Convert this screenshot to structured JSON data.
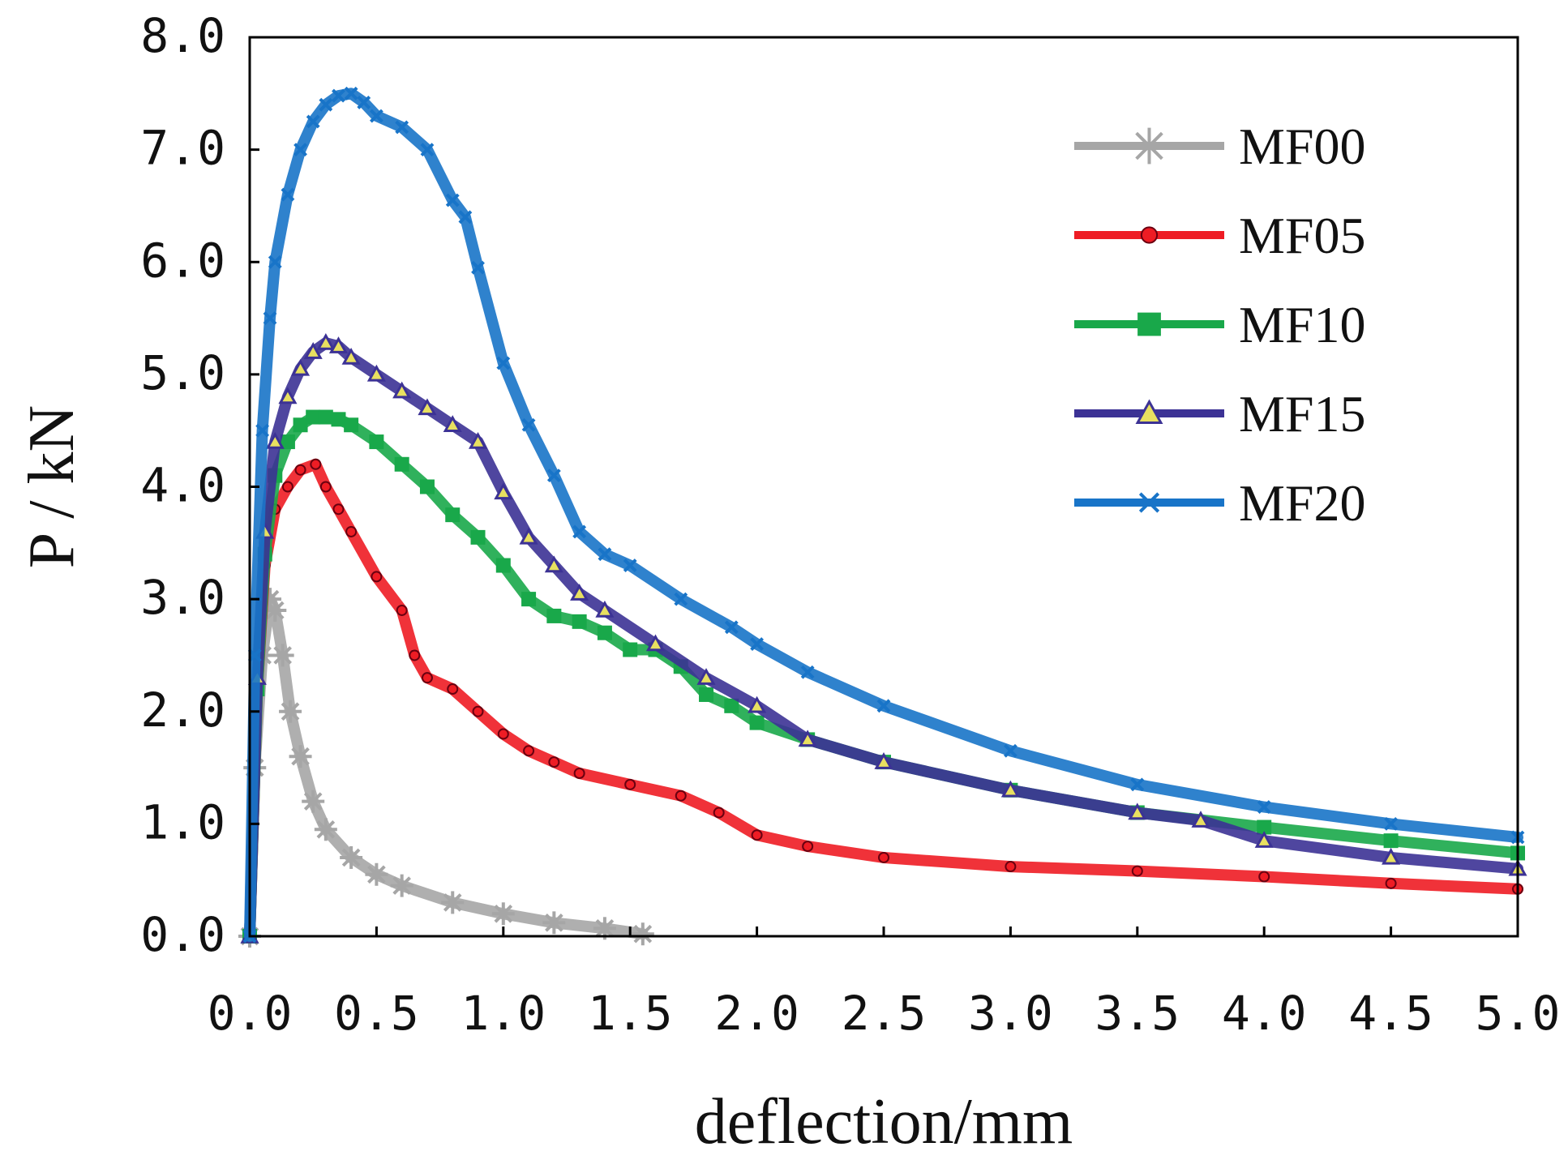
{
  "chart_data": {
    "type": "line",
    "title": "",
    "xlabel": "deflection/mm",
    "ylabel": "P / kN",
    "xlim": [
      0,
      5
    ],
    "ylim": [
      0,
      8
    ],
    "x_ticks": [
      "0.0",
      "0.5",
      "1.0",
      "1.5",
      "2.0",
      "2.5",
      "3.0",
      "3.5",
      "4.0",
      "4.5",
      "5.0"
    ],
    "y_ticks": [
      "0.0",
      "1.0",
      "2.0",
      "3.0",
      "4.0",
      "5.0",
      "6.0",
      "7.0",
      "8.0"
    ],
    "legend_position": "top-right",
    "series": [
      {
        "name": "MF00",
        "color": "#a6a6a6",
        "marker": "asterisk",
        "x": [
          0.0,
          0.02,
          0.05,
          0.08,
          0.1,
          0.13,
          0.16,
          0.2,
          0.25,
          0.3,
          0.4,
          0.5,
          0.6,
          0.8,
          1.0,
          1.2,
          1.4,
          1.55
        ],
        "y": [
          0.0,
          1.5,
          2.5,
          3.0,
          2.9,
          2.5,
          2.0,
          1.6,
          1.2,
          0.95,
          0.7,
          0.55,
          0.45,
          0.3,
          0.2,
          0.12,
          0.07,
          0.02
        ]
      },
      {
        "name": "MF05",
        "color": "#ee1c24",
        "marker": "dot",
        "x": [
          0.0,
          0.03,
          0.06,
          0.1,
          0.15,
          0.2,
          0.26,
          0.3,
          0.35,
          0.4,
          0.5,
          0.6,
          0.65,
          0.7,
          0.8,
          0.9,
          1.0,
          1.1,
          1.2,
          1.3,
          1.5,
          1.7,
          1.85,
          2.0,
          2.2,
          2.5,
          3.0,
          3.5,
          4.0,
          4.5,
          5.0
        ],
        "y": [
          0.0,
          2.2,
          3.3,
          3.8,
          4.0,
          4.15,
          4.2,
          4.0,
          3.8,
          3.6,
          3.2,
          2.9,
          2.5,
          2.3,
          2.2,
          2.0,
          1.8,
          1.65,
          1.55,
          1.45,
          1.35,
          1.25,
          1.1,
          0.9,
          0.8,
          0.7,
          0.62,
          0.58,
          0.53,
          0.47,
          0.42
        ]
      },
      {
        "name": "MF10",
        "color": "#19a84a",
        "marker": "square",
        "x": [
          0.0,
          0.03,
          0.06,
          0.1,
          0.15,
          0.2,
          0.25,
          0.3,
          0.35,
          0.4,
          0.5,
          0.6,
          0.7,
          0.8,
          0.9,
          1.0,
          1.1,
          1.2,
          1.3,
          1.4,
          1.5,
          1.6,
          1.7,
          1.8,
          1.9,
          2.0,
          2.2,
          2.5,
          3.0,
          3.5,
          4.0,
          4.5,
          5.0
        ],
        "y": [
          0.0,
          2.2,
          3.4,
          4.1,
          4.4,
          4.55,
          4.62,
          4.62,
          4.6,
          4.55,
          4.4,
          4.2,
          4.0,
          3.75,
          3.55,
          3.3,
          3.0,
          2.85,
          2.8,
          2.7,
          2.55,
          2.55,
          2.4,
          2.15,
          2.05,
          1.9,
          1.75,
          1.55,
          1.3,
          1.1,
          0.97,
          0.85,
          0.74
        ]
      },
      {
        "name": "MF15",
        "color": "#3c3295",
        "marker": "triangle",
        "x": [
          0.0,
          0.03,
          0.06,
          0.1,
          0.15,
          0.2,
          0.25,
          0.3,
          0.35,
          0.4,
          0.5,
          0.6,
          0.7,
          0.8,
          0.9,
          1.0,
          1.1,
          1.2,
          1.3,
          1.4,
          1.6,
          1.8,
          2.0,
          2.2,
          2.5,
          3.0,
          3.5,
          3.75,
          4.0,
          4.5,
          5.0
        ],
        "y": [
          0.0,
          2.3,
          3.6,
          4.4,
          4.8,
          5.05,
          5.2,
          5.28,
          5.25,
          5.15,
          5.0,
          4.85,
          4.7,
          4.55,
          4.4,
          3.95,
          3.55,
          3.3,
          3.05,
          2.9,
          2.6,
          2.3,
          2.05,
          1.75,
          1.55,
          1.3,
          1.1,
          1.03,
          0.85,
          0.7,
          0.6
        ]
      },
      {
        "name": "MF20",
        "color": "#1874c8",
        "marker": "cross",
        "x": [
          0.0,
          0.02,
          0.05,
          0.08,
          0.1,
          0.15,
          0.2,
          0.25,
          0.3,
          0.35,
          0.4,
          0.45,
          0.5,
          0.6,
          0.7,
          0.8,
          0.85,
          0.9,
          1.0,
          1.1,
          1.2,
          1.3,
          1.4,
          1.5,
          1.7,
          1.9,
          2.0,
          2.2,
          2.5,
          3.0,
          3.5,
          4.0,
          4.5,
          5.0
        ],
        "y": [
          0.0,
          2.5,
          4.5,
          5.5,
          6.0,
          6.6,
          7.0,
          7.25,
          7.4,
          7.48,
          7.5,
          7.42,
          7.3,
          7.2,
          7.0,
          6.55,
          6.4,
          5.95,
          5.1,
          4.55,
          4.1,
          3.6,
          3.4,
          3.3,
          3.0,
          2.75,
          2.6,
          2.35,
          2.05,
          1.65,
          1.35,
          1.15,
          1.0,
          0.88
        ]
      }
    ]
  }
}
